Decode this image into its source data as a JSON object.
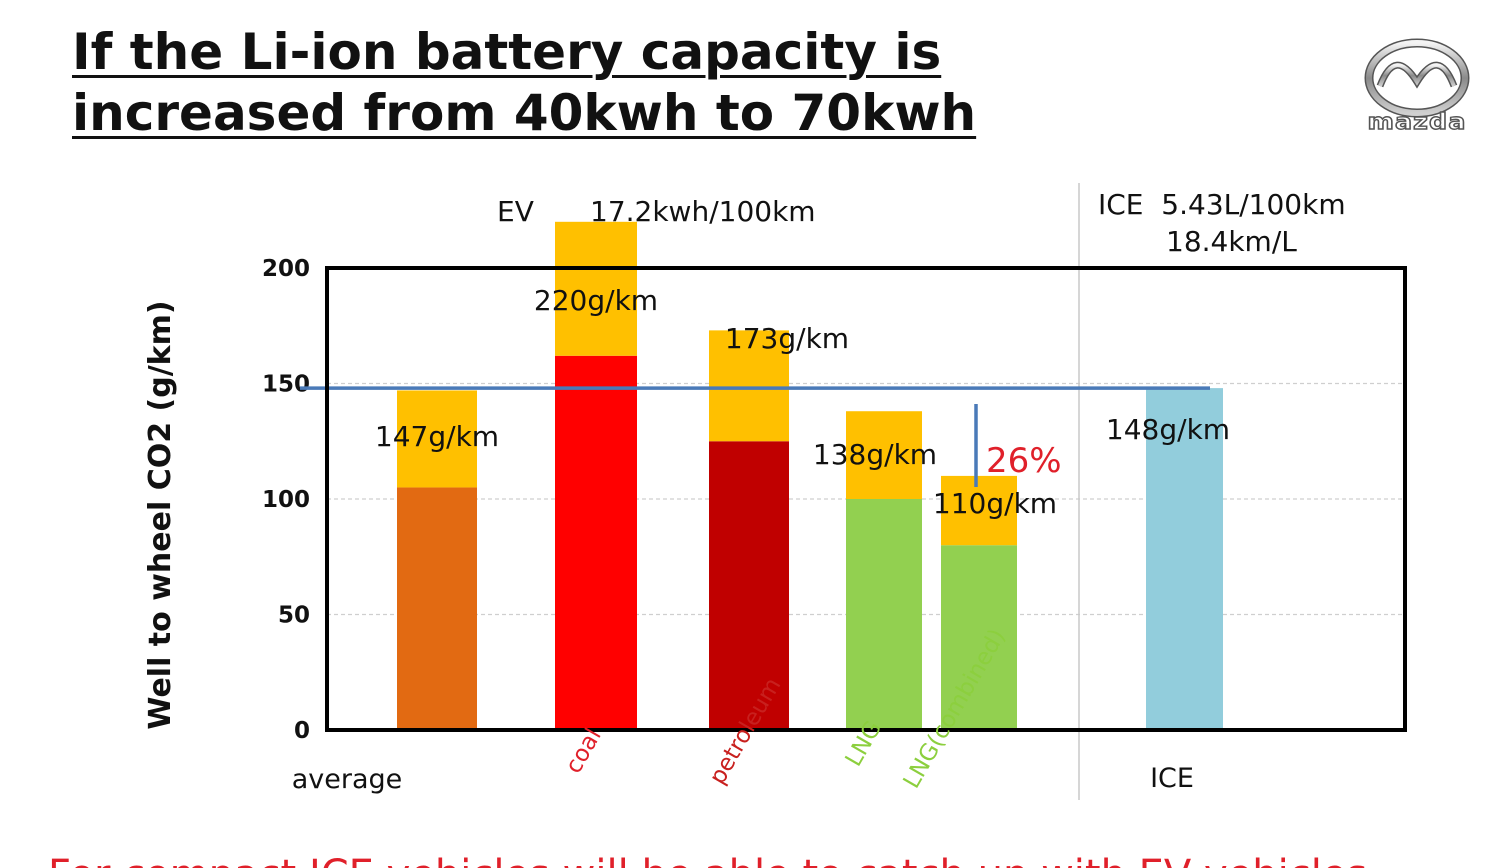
{
  "title": {
    "line1": "If the Li-ion battery capacity is",
    "line2": "increased from 40kwh to 70kwh"
  },
  "logo": {
    "icon": "mazda-logo",
    "text": "mazda"
  },
  "bottom_text": "For compact ICE vehicles will be able to catch up with EV vehicles",
  "chart_data": {
    "type": "bar",
    "stacked": true,
    "title": "",
    "ylabel": "Well to wheel CO2 (g/km)",
    "ylim": [
      0,
      200
    ],
    "yticks": [
      0,
      50,
      100,
      150,
      200
    ],
    "grid": true,
    "header_ev": [
      "EV",
      "17.2kwh/100km"
    ],
    "header_ice": [
      "ICE  5.43L/100km",
      "18.4km/L"
    ],
    "categories": [
      "average",
      "coal",
      "petroleum",
      "LNG",
      "LNG(combined)",
      "ICE"
    ],
    "category_label_colors": [
      "#111111",
      "#e0202a",
      "#c8201e",
      "#8ccf3e",
      "#8ccf3e",
      "#111111"
    ],
    "series": [
      {
        "name": "",
        "values": [
          105,
          162,
          125,
          100,
          80,
          148
        ],
        "colors": [
          "#e26a12",
          "#ff0000",
          "#c00000",
          "#92d050",
          "#92d050",
          "#92cddc"
        ]
      },
      {
        "name": "",
        "values": [
          42,
          58,
          48,
          38,
          30,
          0
        ],
        "colors": [
          "#ffc000",
          "#ffc000",
          "#ffc000",
          "#ffc000",
          "#ffc000",
          "#ffc000"
        ]
      }
    ],
    "totals_labels": [
      "147g/km",
      "220g/km",
      "173g/km",
      "138g/km",
      "110g/km",
      "148g/km"
    ],
    "reference_line": 148,
    "annotation": "26%"
  }
}
